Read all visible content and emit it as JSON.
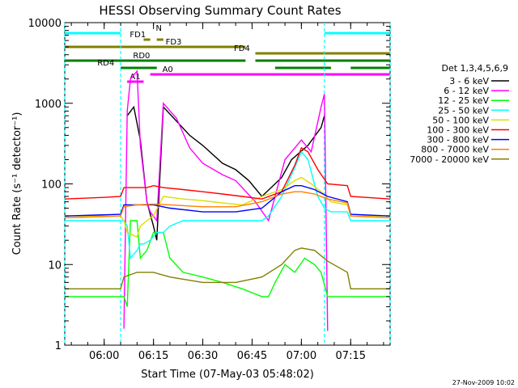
{
  "chart_data": {
    "type": "line",
    "title": "HESSI Observing Summary Count Rates",
    "xlabel": "Start Time (07-May-03 05:48:02)",
    "ylabel": "Count Rate (s⁻¹ detector⁻¹)",
    "x_unit": "UT minutes",
    "x_range": [
      "05:48",
      "07:27"
    ],
    "x_ticks": [
      "06:00",
      "06:15",
      "06:30",
      "06:45",
      "07:00",
      "07:15"
    ],
    "y_scale": "log",
    "y_range": [
      1,
      10000
    ],
    "y_ticks": [
      "1",
      "10",
      "100",
      "1000",
      "10000"
    ],
    "grid": false,
    "footer": "27-Nov-2009 10:02",
    "legend": {
      "placement": "right",
      "header": "Det 1,3,4,5,6,9"
    },
    "series": [
      {
        "name": "3 - 6 keV",
        "color": "#000000",
        "x": [
          "06:00",
          "06:06",
          "06:07",
          "06:09",
          "06:11",
          "06:13",
          "06:15",
          "06:16",
          "06:18",
          "06:22",
          "06:26",
          "06:30",
          "06:36",
          "06:40",
          "06:44",
          "06:48",
          "06:54",
          "06:57",
          "07:02",
          "07:06",
          "07:07"
        ],
        "y": [
          null,
          null,
          700,
          900,
          350,
          60,
          30,
          20,
          900,
          600,
          400,
          300,
          180,
          150,
          110,
          70,
          120,
          200,
          300,
          500,
          700
        ]
      },
      {
        "name": "6 - 12 keV",
        "color": "#ff00ff",
        "x": [
          "05:48",
          "06:05",
          "06:06",
          "06:07",
          "06:08",
          "06:10",
          "06:11",
          "06:13",
          "06:14",
          "06:16",
          "06:18",
          "06:22",
          "06:26",
          "06:30",
          "06:36",
          "06:40",
          "06:46",
          "06:50",
          "06:55",
          "07:00",
          "07:03",
          "07:06",
          "07:07",
          "07:08",
          "07:14",
          "07:27"
        ],
        "y": [
          null,
          null,
          1.6,
          800,
          2000,
          2500,
          300,
          60,
          45,
          35,
          1000,
          650,
          280,
          180,
          130,
          110,
          60,
          35,
          200,
          350,
          250,
          900,
          1300,
          1.5,
          null,
          null
        ]
      },
      {
        "name": "12 - 25 keV",
        "color": "#00ff00",
        "x": [
          "05:48",
          "06:05",
          "06:06",
          "06:07",
          "06:08",
          "06:10",
          "06:11",
          "06:13",
          "06:15",
          "06:18",
          "06:20",
          "06:24",
          "06:30",
          "06:36",
          "06:42",
          "06:48",
          "06:50",
          "06:52",
          "06:55",
          "06:58",
          "07:01",
          "07:04",
          "07:06",
          "07:08",
          "07:14",
          "07:27"
        ],
        "y": [
          4,
          4,
          4,
          3,
          35,
          35,
          12,
          15,
          25,
          25,
          12,
          8,
          7,
          6,
          5,
          4,
          4,
          6,
          10,
          8,
          12,
          10,
          8,
          4,
          4,
          4
        ]
      },
      {
        "name": "25 - 50 keV",
        "color": "#00ffff",
        "x": [
          "05:48",
          "06:05",
          "06:06",
          "06:07",
          "06:08",
          "06:10",
          "06:11",
          "06:12",
          "06:14",
          "06:16",
          "06:18",
          "06:20",
          "06:24",
          "06:30",
          "06:36",
          "06:42",
          "06:48",
          "06:50",
          "06:54",
          "06:58",
          "07:00",
          "07:02",
          "07:05",
          "07:07",
          "07:09",
          "07:14",
          "07:15",
          "07:27"
        ],
        "y": [
          35,
          35,
          35,
          30,
          12,
          15,
          18,
          18,
          20,
          25,
          25,
          30,
          35,
          35,
          35,
          35,
          35,
          40,
          70,
          160,
          250,
          200,
          70,
          50,
          45,
          45,
          35,
          35
        ]
      },
      {
        "name": "50 - 100 keV",
        "color": "#dddd00",
        "x": [
          "05:48",
          "06:05",
          "06:06",
          "06:07",
          "06:10",
          "06:11",
          "06:13",
          "06:15",
          "06:18",
          "06:24",
          "06:30",
          "06:36",
          "06:42",
          "06:48",
          "06:54",
          "06:58",
          "07:00",
          "07:03",
          "07:06",
          "07:09",
          "07:14",
          "07:15",
          "07:27"
        ],
        "y": [
          40,
          40,
          35,
          25,
          22,
          30,
          35,
          40,
          70,
          65,
          62,
          58,
          55,
          70,
          85,
          110,
          120,
          100,
          80,
          60,
          55,
          40,
          40
        ]
      },
      {
        "name": "100 - 300 keV",
        "color": "#ff0000",
        "x": [
          "05:48",
          "06:00",
          "06:05",
          "06:06",
          "06:10",
          "06:13",
          "06:15",
          "06:18",
          "06:24",
          "06:30",
          "06:36",
          "06:42",
          "06:48",
          "06:54",
          "06:58",
          "07:00",
          "07:02",
          "07:05",
          "07:08",
          "07:14",
          "07:15",
          "07:27"
        ],
        "y": [
          65,
          68,
          70,
          90,
          90,
          90,
          95,
          90,
          85,
          80,
          75,
          70,
          65,
          80,
          170,
          280,
          250,
          150,
          100,
          95,
          70,
          65
        ]
      },
      {
        "name": "300 - 800 keV",
        "color": "#0000ff",
        "x": [
          "05:48",
          "06:05",
          "06:06",
          "06:10",
          "06:15",
          "06:20",
          "06:30",
          "06:40",
          "06:48",
          "06:54",
          "06:58",
          "07:00",
          "07:04",
          "07:08",
          "07:14",
          "07:15",
          "07:27"
        ],
        "y": [
          40,
          42,
          55,
          55,
          55,
          50,
          45,
          45,
          50,
          80,
          95,
          95,
          85,
          70,
          60,
          42,
          40
        ]
      },
      {
        "name": "800 - 7000 keV",
        "color": "#ff8000",
        "x": [
          "05:48",
          "06:05",
          "06:06",
          "06:10",
          "06:15",
          "06:20",
          "06:30",
          "06:40",
          "06:48",
          "06:54",
          "06:58",
          "07:00",
          "07:04",
          "07:08",
          "07:14",
          "07:15",
          "07:27"
        ],
        "y": [
          38,
          40,
          52,
          55,
          56,
          55,
          52,
          52,
          60,
          75,
          80,
          80,
          75,
          65,
          58,
          40,
          38
        ]
      },
      {
        "name": "7000 - 20000 keV",
        "color": "#808000",
        "x": [
          "05:48",
          "06:05",
          "06:06",
          "06:10",
          "06:15",
          "06:20",
          "06:30",
          "06:40",
          "06:48",
          "06:54",
          "06:58",
          "07:00",
          "07:04",
          "07:08",
          "07:14",
          "07:15",
          "07:27"
        ],
        "y": [
          5,
          5,
          7,
          8,
          8,
          7,
          6,
          6,
          7,
          10,
          15,
          16,
          15,
          11,
          8,
          5,
          5
        ]
      }
    ],
    "flag_bars": [
      {
        "name": "N",
        "color": "#00ffff",
        "spans": [
          [
            "05:48",
            "06:05"
          ],
          [
            "07:07",
            "07:27"
          ]
        ]
      },
      {
        "name": "FD1",
        "color": "#808000",
        "spans": [
          [
            "06:12",
            "06:14"
          ],
          [
            "06:16",
            "06:18"
          ]
        ]
      },
      {
        "name": "FD3",
        "color": "#808000",
        "spans": [
          [
            "05:48",
            "06:43"
          ]
        ]
      },
      {
        "name": "FD4",
        "color": "#808000",
        "spans": [
          [
            "06:46",
            "07:27"
          ]
        ]
      },
      {
        "name": "RD0",
        "color": "#008000",
        "spans": [
          [
            "05:48",
            "06:43"
          ],
          [
            "06:46",
            "07:27"
          ]
        ]
      },
      {
        "name": "RD4",
        "color": "#008000",
        "spans": [
          [
            "06:05",
            "06:16"
          ],
          [
            "06:52",
            "07:09"
          ],
          [
            "07:15",
            "07:27"
          ]
        ]
      },
      {
        "name": "A1",
        "color": "#ff00ff",
        "spans": [
          [
            "06:07",
            "06:12"
          ]
        ]
      },
      {
        "name": "A0",
        "color": "#ff00ff",
        "spans": [
          [
            "06:14",
            "06:18"
          ],
          [
            "06:18",
            "07:27"
          ]
        ]
      }
    ],
    "vlines": [
      {
        "x": "05:48",
        "color": "#00ffff",
        "style": "dashed"
      },
      {
        "x": "06:05",
        "color": "#00ffff",
        "style": "dashed"
      },
      {
        "x": "07:07",
        "color": "#00ffff",
        "style": "dashed"
      },
      {
        "x": "07:27",
        "color": "#00ffff",
        "style": "dashed"
      }
    ]
  }
}
